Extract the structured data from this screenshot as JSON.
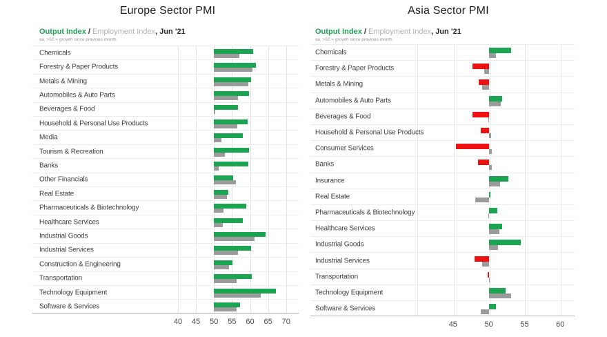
{
  "colors": {
    "output_growth": "#1ca453",
    "output_contraction": "#ee1111",
    "employment": "#9b9b9b",
    "legend_output": "#1ca453",
    "legend_employment": "#b3b3b3",
    "legend_date": "#2b2b2b"
  },
  "charts": [
    {
      "id": "europe",
      "title": "Europe Sector PMI",
      "legend": {
        "output_label": "Output Index",
        "separator": " / ",
        "employment_label": "Employment Index",
        "date_suffix": ", Jun '21"
      },
      "subtitle": "sa, >50 = growth since previous month",
      "chart_data": {
        "type": "bar",
        "orientation": "horizontal",
        "baseline": 50,
        "grid": true,
        "xlim": [
          37.5,
          73.5
        ],
        "ticks": [
          40,
          45,
          50,
          55,
          60,
          65,
          70
        ],
        "categories": [
          "Chemicals",
          "Forestry & Paper Products",
          "Metals & Mining",
          "Automobiles & Auto Parts",
          "Beverages & Food",
          "Household & Personal Use Products",
          "Media",
          "Tourism & Recreation",
          "Banks",
          "Other Financials",
          "Real Estate",
          "Pharmaceuticals & Biotechnology",
          "Healthcare Services",
          "Industrial Goods",
          "Industrial Services",
          "Construction & Engineering",
          "Transportation",
          "Technology Equipment",
          "Software & Services"
        ],
        "series": [
          {
            "name": "Output Index",
            "values": [
              60.9,
              61.6,
              60.2,
              59.8,
              56.6,
              59.3,
              57.9,
              59.8,
              59.5,
              55.4,
              53.9,
              59.0,
              57.9,
              64.4,
              60.2,
              55.1,
              60.4,
              67.2,
              57.2
            ]
          },
          {
            "name": "Employment Index",
            "values": [
              57.0,
              60.6,
              59.5,
              56.7,
              50.4,
              56.5,
              52.1,
              53.1,
              51.3,
              56.0,
              53.6,
              52.7,
              52.4,
              61.2,
              56.6,
              54.2,
              56.2,
              63.0,
              56.3
            ]
          }
        ]
      }
    },
    {
      "id": "asia",
      "title": "Asia Sector PMI",
      "legend": {
        "output_label": "Output Index",
        "separator": " / ",
        "employment_label": "Employment Index",
        "date_suffix": ", Jun '21"
      },
      "subtitle": "sa, >50 = growth since previous month",
      "chart_data": {
        "type": "bar",
        "orientation": "horizontal",
        "baseline": 50,
        "grid": true,
        "xlim": [
          40,
          62
        ],
        "ticks": [
          45,
          50,
          55,
          60
        ],
        "categories": [
          "Chemicals",
          "Forestry & Paper Products",
          "Metals & Mining",
          "Automobiles & Auto Parts",
          "Beverages & Food",
          "Household & Personal Use Products",
          "Consumer Services",
          "Banks",
          "Insurance",
          "Real Estate",
          "Pharmaceuticals & Biotechnology",
          "Healthcare Services",
          "Industrial Goods",
          "Industrial Services",
          "Transportation",
          "Technology Equipment",
          "Software & Services"
        ],
        "series": [
          {
            "name": "Output Index",
            "values": [
              53.1,
              47.7,
              48.6,
              51.9,
              47.7,
              48.9,
              45.4,
              48.5,
              52.7,
              50.2,
              51.2,
              51.9,
              54.5,
              48.0,
              49.8,
              52.4,
              51.0
            ]
          },
          {
            "name": "Employment Index",
            "values": [
              51.0,
              49.4,
              49.1,
              51.7,
              49.9,
              50.3,
              50.4,
              50.4,
              51.6,
              48.1,
              49.9,
              51.5,
              51.3,
              49.1,
              50.1,
              53.1,
              48.9
            ]
          }
        ]
      }
    }
  ]
}
